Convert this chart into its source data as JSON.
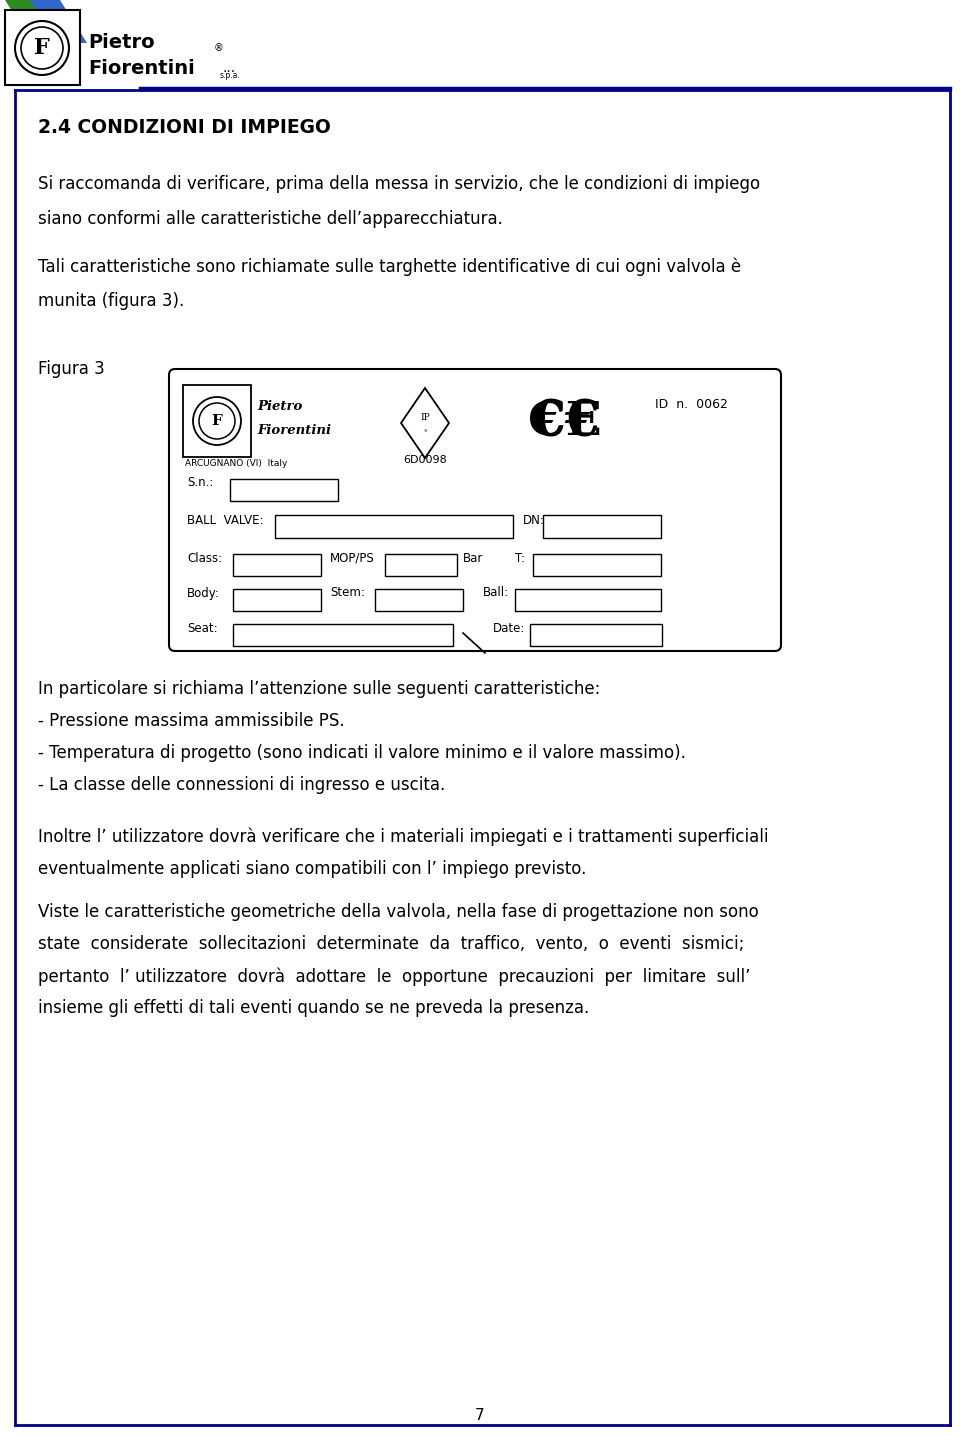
{
  "page_title": "2.4 CONDIZIONI DI IMPIEGO",
  "para1_line1": "Si raccomanda di verificare, prima della messa in servizio, che le condizioni di impiego",
  "para1_line2": "siano conformi alle caratteristiche dell’apparecchiatura.",
  "para2_line1": "Tali caratteristiche sono richiamate sulle targhette identificative di cui ogni valvola è",
  "para2_line2": "munita (figura 3).",
  "figura_label": "Figura 3",
  "label_id": "ID  n.  0062",
  "label_arcugnano": "ARCUGNANO (VI)  Italy",
  "label_6D0098": "6D0098",
  "label_sn": "S.n.:",
  "label_ball_valve": "BALL  VALVE:",
  "label_dn": "DN:",
  "label_class": "Class:",
  "label_mop": "MOP/PS",
  "label_bar": "Bar",
  "label_t": "T:",
  "label_body": "Body:",
  "label_stem": "Stem:",
  "label_ball": "Ball:",
  "label_seat": "Seat:",
  "label_date": "Date:",
  "para3": "In particolare si richiama l’attenzione sulle seguenti caratteristiche:",
  "bullet1": "- Pressione massima ammissibile PS.",
  "bullet2": "- Temperatura di progetto (sono indicati il valore minimo e il valore massimo).",
  "bullet3": "- La classe delle connessioni di ingresso e uscita.",
  "para4_line1": "Inoltre l’ utilizzatore dovrà verificare che i materiali impiegati e i trattamenti superficiali",
  "para4_line2": "eventualmente applicati siano compatibili con l’ impiego previsto.",
  "para5_line1": "Viste le caratteristiche geometriche della valvola, nella fase di progettazione non sono",
  "para5_line2": "state  considerate  sollecitazioni  determinate  da  traffico,  vento,  o  eventi  sismici;",
  "para5_line3": "pertanto  l’ utilizzatore  dovrà  adottare  le  opportune  precauzioni  per  limitare  sull’",
  "para5_line4": "insieme gli effetti di tali eventi quando se ne preveda la presenza.",
  "page_number": "7",
  "border_color": "#00008B",
  "text_color": "#000000",
  "bg_color": "#ffffff"
}
